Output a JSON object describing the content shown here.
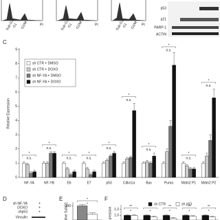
{
  "panels": {
    "top": {
      "flow_labels": [
        "Sub-G1",
        "G1",
        "G2/M"
      ],
      "flow_axis": "PI",
      "blot_labels": [
        "p53",
        "p21",
        "PARP-1",
        "ACTIN"
      ]
    },
    "c_label": "C",
    "d_label": "D",
    "e_label": "E",
    "f_label": "F",
    "d": {
      "rows": [
        "sh NF-YA",
        "DOXO",
        "shp53",
        "Vinculin"
      ],
      "signs": [
        "+",
        "+",
        "+"
      ]
    }
  },
  "chart_data": [
    {
      "type": "bar",
      "y_label": "Relative Expression",
      "categories": [
        "NF-YA",
        "NF-YB",
        "E6",
        "E7",
        "p53",
        "Cdkn1a",
        "Bax",
        "Puma",
        "Mdm2 P1",
        "Mdm2 P2"
      ],
      "series": [
        {
          "name": "sh CTR + DMSO",
          "color": "#ffffff",
          "values": [
            1,
            1,
            1,
            1,
            1,
            1,
            1,
            1,
            1,
            1
          ],
          "errors": [
            0.1,
            0.1,
            0.1,
            0.1,
            0.1,
            0.1,
            0.1,
            0.1,
            0.1,
            0.1
          ]
        },
        {
          "name": "sh CTR + DOXO",
          "color": "#cccccc",
          "values": [
            0.9,
            1,
            0.6,
            0.6,
            1.2,
            1.3,
            1.1,
            1.8,
            0.8,
            1.5
          ],
          "errors": [
            0.1,
            0.1,
            0.1,
            0.1,
            0.1,
            0.1,
            0.1,
            0.2,
            0.1,
            0.2
          ]
        },
        {
          "name": "sh NF-YA + DMSO",
          "color": "#777777",
          "values": [
            0.3,
            1.7,
            0.2,
            0.2,
            1.5,
            1.4,
            1,
            3.6,
            0.6,
            2.6
          ],
          "errors": [
            0.1,
            0.1,
            0.1,
            0.1,
            0.1,
            0.1,
            0.1,
            0.4,
            0.1,
            0.4
          ]
        },
        {
          "name": "sh NF-YA + DOXO",
          "color": "#111111",
          "values": [
            0.4,
            1.7,
            0.4,
            0.4,
            1.7,
            4.7,
            1.5,
            7.9,
            0.6,
            5.6
          ],
          "errors": [
            0.1,
            0.1,
            0.1,
            0.1,
            0.1,
            0.5,
            0.2,
            0.9,
            0.1,
            0.6
          ]
        }
      ],
      "significance": [
        [
          "*",
          "n.s."
        ],
        [
          "*",
          "n.s."
        ],
        [
          "*",
          "n.s."
        ],
        [
          "*",
          "n.s."
        ],
        [
          "*",
          "n.s."
        ],
        [
          "*",
          "n.s."
        ],
        [
          "*",
          "n.s."
        ],
        [
          "*",
          "n.s."
        ],
        [
          "*",
          "n.s."
        ],
        [
          "*",
          "n.s."
        ]
      ],
      "ylim": [
        0,
        9
      ],
      "yticks": [
        0,
        1,
        2,
        3,
        4,
        5,
        6,
        7,
        8,
        9
      ],
      "legend": "upper left"
    },
    {
      "type": "bar",
      "y_label": "ative SubG1",
      "series": [
        {
          "color": "#888888",
          "values": [
            100
          ],
          "errors": [
            5
          ]
        },
        {
          "color": "#ffffff",
          "values": [
            64
          ],
          "errors": [
            6
          ]
        }
      ],
      "significance": [
        [
          "*",
          "*"
        ]
      ],
      "ylim": [
        40,
        110
      ],
      "yticks": [
        100
      ]
    },
    {
      "type": "bar",
      "y_label": "pression",
      "series": [
        {
          "name": "sh CTR",
          "color": "#111111",
          "values": [
            1,
            1,
            1,
            1,
            1
          ],
          "errors": [
            0.02,
            0.02,
            0.02,
            0.02,
            0.02
          ]
        },
        {
          "name": "sh p53",
          "color": "#ffffff",
          "values": [
            1,
            0.95,
            0.9,
            0.97,
            0.95
          ],
          "errors": [
            0.02,
            0.03,
            0.03,
            0.02,
            0.03
          ]
        }
      ],
      "significance": [
        [
          "**",
          "*"
        ],
        [
          "**",
          "*"
        ],
        [
          "**",
          "*"
        ],
        [
          "**",
          "*"
        ],
        [
          "**",
          "*"
        ]
      ],
      "ylim": [
        0.85,
        1.3
      ],
      "yticks": [
        {
          "value": 1.2,
          "label": "1.2"
        },
        {
          "value": 1,
          "label": "1.0"
        }
      ],
      "legend": "top"
    }
  ]
}
